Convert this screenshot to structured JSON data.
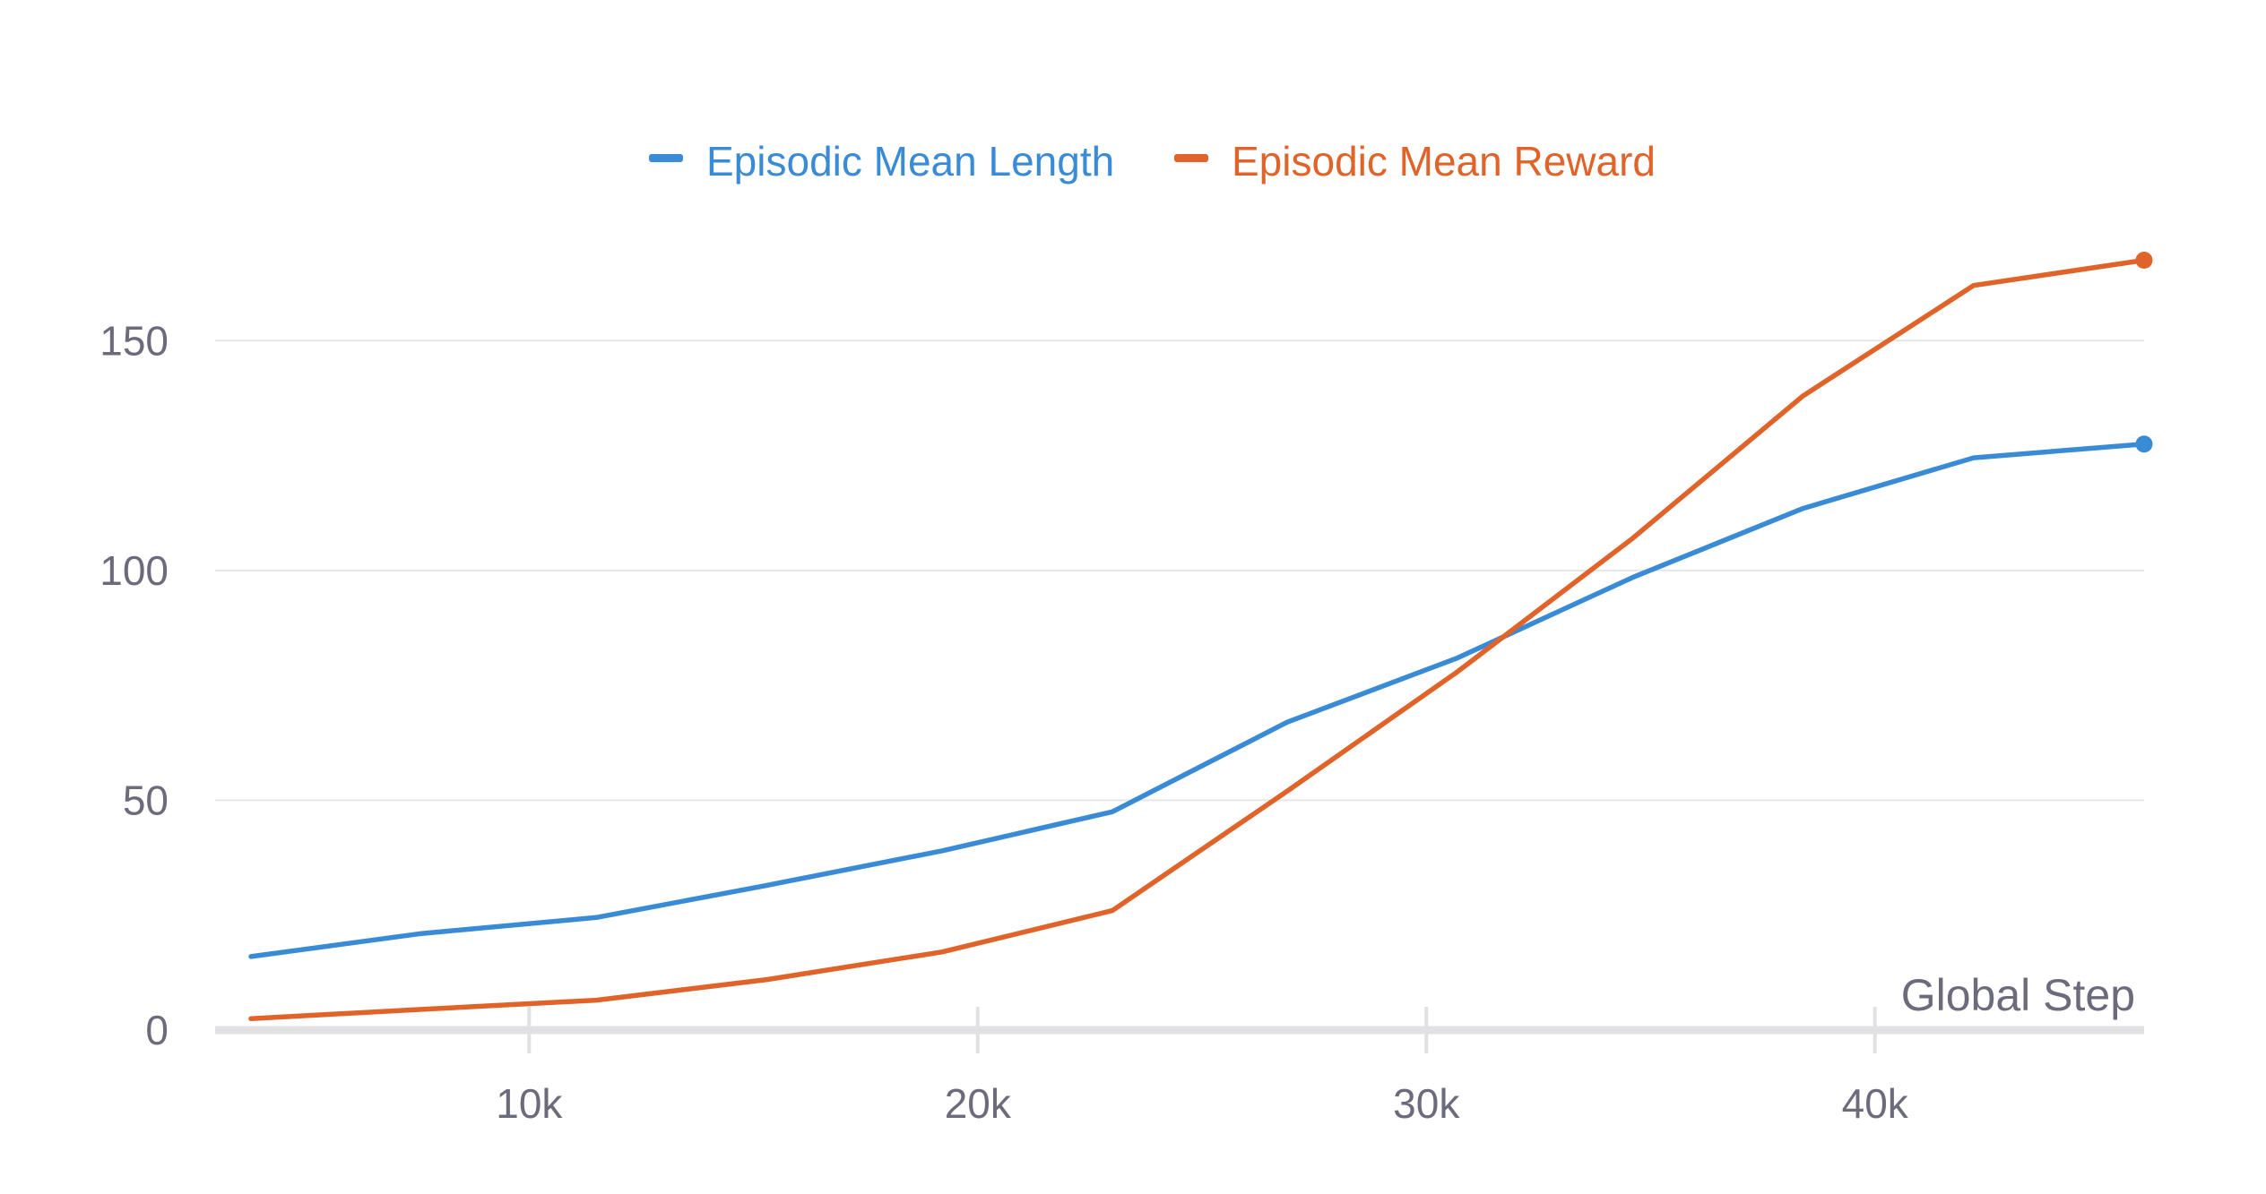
{
  "chart_data": {
    "type": "line",
    "title": "",
    "xlabel": "Global Step",
    "ylabel": "",
    "xlim": [
      3000,
      46000
    ],
    "ylim": [
      0,
      175
    ],
    "grid": true,
    "legend": "top-center",
    "x_ticks": [
      {
        "value": 10000,
        "label": "10k"
      },
      {
        "value": 20000,
        "label": "20k"
      },
      {
        "value": 30000,
        "label": "30k"
      },
      {
        "value": 40000,
        "label": "40k"
      }
    ],
    "y_ticks": [
      {
        "value": 0,
        "label": "0"
      },
      {
        "value": 50,
        "label": "50"
      },
      {
        "value": 100,
        "label": "100"
      },
      {
        "value": 150,
        "label": "150"
      }
    ],
    "series": [
      {
        "name": "Episodic Mean Length",
        "color": "#3a8bd6",
        "points": [
          [
            3800,
            16
          ],
          [
            7600,
            21
          ],
          [
            11500,
            24.5
          ],
          [
            15300,
            31.5
          ],
          [
            19200,
            39
          ],
          [
            23000,
            47.5
          ],
          [
            26900,
            67
          ],
          [
            30700,
            81
          ],
          [
            34600,
            98.5
          ],
          [
            38400,
            113.5
          ],
          [
            42200,
            124.5
          ],
          [
            46000,
            127.5
          ]
        ]
      },
      {
        "name": "Episodic Mean Reward",
        "color": "#e0632a",
        "points": [
          [
            3800,
            2.5
          ],
          [
            7600,
            4.5
          ],
          [
            11500,
            6.5
          ],
          [
            15300,
            11
          ],
          [
            19200,
            17
          ],
          [
            23000,
            26
          ],
          [
            26900,
            52
          ],
          [
            30700,
            78
          ],
          [
            34600,
            107
          ],
          [
            38400,
            138
          ],
          [
            42200,
            162
          ],
          [
            46000,
            167.5
          ]
        ]
      }
    ]
  }
}
